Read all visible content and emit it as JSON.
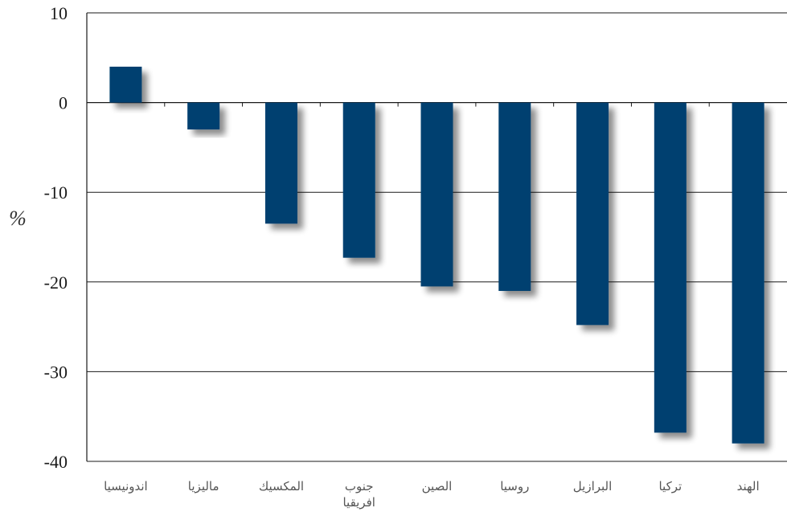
{
  "chart_data": {
    "type": "bar",
    "ylabel": "%",
    "ylim": [
      -40,
      10
    ],
    "yticks": [
      10,
      0,
      -10,
      -20,
      -30,
      -40
    ],
    "grid": true,
    "bar_color": "#003f6f",
    "categories": [
      [
        "اندونيسيا"
      ],
      [
        "ماليزيا"
      ],
      [
        "المكسيك"
      ],
      [
        "جنوب",
        "افريقيا"
      ],
      [
        "الصين"
      ],
      [
        "روسيا"
      ],
      [
        "البرازيل"
      ],
      [
        "تركيا"
      ],
      [
        "الهند"
      ]
    ],
    "values": [
      4,
      -3,
      -13.5,
      -17.3,
      -20.5,
      -21,
      -24.8,
      -36.8,
      -38
    ]
  }
}
